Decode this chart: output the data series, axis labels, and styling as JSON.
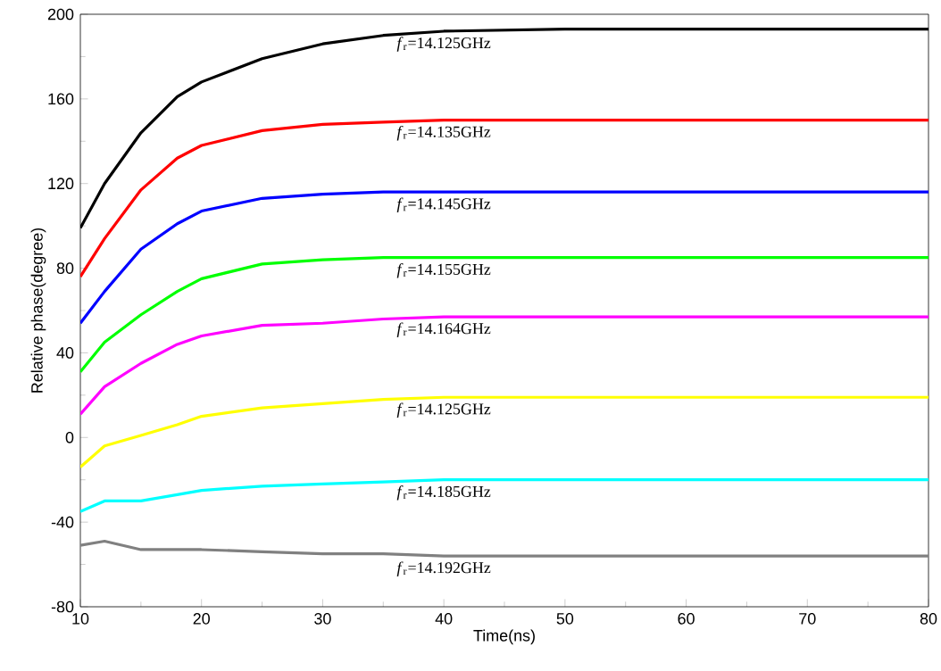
{
  "chart_data": {
    "type": "line",
    "xlabel": "Time(ns)",
    "ylabel": "Relative phase(degree)",
    "x": [
      10,
      12,
      15,
      18,
      20,
      25,
      30,
      35,
      40,
      50,
      60,
      70,
      80
    ],
    "xlim": [
      10,
      80
    ],
    "ylim": [
      -80,
      200
    ],
    "xticks": [
      10,
      20,
      30,
      40,
      50,
      60,
      70,
      80
    ],
    "yticks": [
      -80,
      -40,
      0,
      40,
      80,
      120,
      160,
      200
    ],
    "line_style": "solid",
    "series": [
      {
        "name": "*f*$_{r}$=14.125GHz",
        "color": "#000000",
        "values": [
          99,
          120,
          144,
          161,
          168,
          179,
          186,
          190,
          192,
          193,
          193,
          193,
          193
        ]
      },
      {
        "name": "*f*$_{r}$=14.135GHz",
        "color": "#ff0000",
        "values": [
          76,
          94,
          117,
          132,
          138,
          145,
          148,
          149,
          150,
          150,
          150,
          150,
          150
        ]
      },
      {
        "name": "*f*$_{r}$=14.145GHz",
        "color": "#0000ff",
        "values": [
          54,
          69,
          89,
          101,
          107,
          113,
          115,
          116,
          116,
          116,
          116,
          116,
          116
        ]
      },
      {
        "name": "*f*$_{r}$=14.155GHz",
        "color": "#00ff00",
        "values": [
          31,
          45,
          58,
          69,
          75,
          82,
          84,
          85,
          85,
          85,
          85,
          85,
          85
        ]
      },
      {
        "name": "*f*$_{r}$=14.164GHz",
        "color": "#ff00ff",
        "values": [
          11,
          24,
          35,
          44,
          48,
          53,
          54,
          56,
          57,
          57,
          57,
          57,
          57
        ]
      },
      {
        "name": "*f*$_{r}$=14.125GHz",
        "color": "#ffff00",
        "values": [
          -14,
          -4,
          1,
          6,
          10,
          14,
          16,
          18,
          19,
          19,
          19,
          19,
          19
        ]
      },
      {
        "name": "*f*$_{r}$=14.185GHz",
        "color": "#00ffff",
        "values": [
          -35,
          -30,
          -30,
          -27,
          -25,
          -23,
          -22,
          -21,
          -20,
          -20,
          -20,
          -20,
          -20
        ]
      },
      {
        "name": "*f*$_{r}$=14.192GHz",
        "color": "#808080",
        "values": [
          -51,
          -49,
          -53,
          -53,
          -53,
          -54,
          -55,
          -55,
          -56,
          -56,
          -56,
          -56,
          -56
        ]
      }
    ]
  }
}
